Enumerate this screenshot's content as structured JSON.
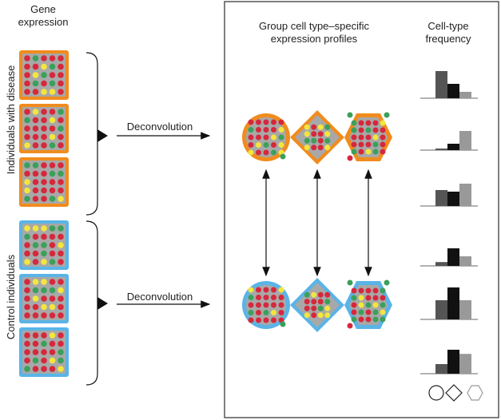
{
  "left_panel": {
    "header_line1": "Gene",
    "header_line2": "expression",
    "group_disease_label": "Individuals with disease",
    "group_control_label": "Control individuals"
  },
  "arrows": {
    "top_label": "Deconvolution",
    "bottom_label": "Deconvolution"
  },
  "right_panel": {
    "profiles_header_line1": "Group cell type–specific",
    "profiles_header_line2": "expression profiles",
    "frequency_header_line1": "Cell-type",
    "frequency_header_line2": "frequency",
    "legend_shapes": [
      "circle",
      "diamond",
      "hexagon"
    ]
  },
  "colors": {
    "disease_border": "#f08c1e",
    "control_border": "#5ab4e6",
    "tile_fill": "#a8a8a8",
    "dot_red": "#d6283c",
    "dot_green": "#3aa05a",
    "dot_yellow": "#f4e63c",
    "bar_dark": "#555555",
    "bar_black": "#111111",
    "bar_light": "#999999"
  },
  "chart_data": [
    {
      "type": "bar",
      "group": "disease",
      "values": [
        0.85,
        0.45,
        0.2
      ]
    },
    {
      "type": "bar",
      "group": "disease",
      "values": [
        0.05,
        0.2,
        0.6
      ]
    },
    {
      "type": "bar",
      "group": "disease",
      "values": [
        0.5,
        0.45,
        0.7
      ]
    },
    {
      "type": "bar",
      "group": "control",
      "values": [
        0.12,
        0.55,
        0.3
      ]
    },
    {
      "type": "bar",
      "group": "control",
      "values": [
        0.6,
        1.0,
        0.6
      ]
    },
    {
      "type": "bar",
      "group": "control",
      "values": [
        0.3,
        0.75,
        0.62
      ]
    }
  ]
}
